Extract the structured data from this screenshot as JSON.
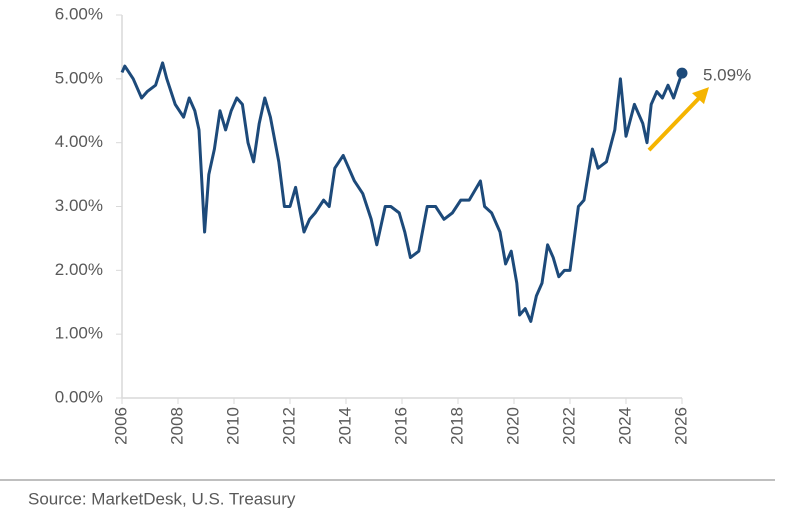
{
  "chart_data": {
    "type": "line",
    "x": [
      2006.0,
      2006.1,
      2006.4,
      2006.7,
      2006.9,
      2007.2,
      2007.45,
      2007.6,
      2007.9,
      2008.2,
      2008.4,
      2008.6,
      2008.75,
      2008.9,
      2008.95,
      2009.1,
      2009.3,
      2009.5,
      2009.7,
      2009.9,
      2010.1,
      2010.3,
      2010.5,
      2010.7,
      2010.9,
      2011.1,
      2011.3,
      2011.6,
      2011.8,
      2012.0,
      2012.2,
      2012.5,
      2012.7,
      2012.9,
      2013.2,
      2013.4,
      2013.6,
      2013.9,
      2014.1,
      2014.3,
      2014.6,
      2014.9,
      2015.1,
      2015.4,
      2015.6,
      2015.9,
      2016.1,
      2016.3,
      2016.6,
      2016.9,
      2017.2,
      2017.5,
      2017.8,
      2018.1,
      2018.4,
      2018.8,
      2018.95,
      2019.2,
      2019.5,
      2019.7,
      2019.9,
      2020.1,
      2020.2,
      2020.4,
      2020.6,
      2020.8,
      2021.0,
      2021.2,
      2021.4,
      2021.6,
      2021.8,
      2022.0,
      2022.3,
      2022.5,
      2022.8,
      2023.0,
      2023.3,
      2023.6,
      2023.8,
      2024.0,
      2024.3,
      2024.6,
      2024.75,
      2024.9,
      2025.1,
      2025.3,
      2025.5,
      2025.7,
      2025.85,
      2026.0
    ],
    "series": [
      {
        "color": "#1d4a7a",
        "values": [
          5.1,
          5.2,
          5.0,
          4.7,
          4.8,
          4.9,
          5.25,
          5.0,
          4.6,
          4.4,
          4.7,
          4.5,
          4.2,
          3.0,
          2.6,
          3.5,
          3.9,
          4.5,
          4.2,
          4.5,
          4.7,
          4.6,
          4.0,
          3.7,
          4.3,
          4.7,
          4.4,
          3.7,
          3.0,
          3.0,
          3.3,
          2.6,
          2.8,
          2.9,
          3.1,
          3.0,
          3.6,
          3.8,
          3.6,
          3.4,
          3.2,
          2.8,
          2.4,
          3.0,
          3.0,
          2.9,
          2.6,
          2.2,
          2.3,
          3.0,
          3.0,
          2.8,
          2.9,
          3.1,
          3.1,
          3.4,
          3.0,
          2.9,
          2.6,
          2.1,
          2.3,
          1.8,
          1.3,
          1.4,
          1.2,
          1.6,
          1.8,
          2.4,
          2.2,
          1.9,
          2.0,
          2.0,
          3.0,
          3.1,
          3.9,
          3.6,
          3.7,
          4.2,
          5.0,
          4.1,
          4.6,
          4.3,
          4.0,
          4.6,
          4.8,
          4.7,
          4.9,
          4.7,
          4.9,
          5.09
        ]
      }
    ],
    "xlim": [
      2006,
      2026
    ],
    "xticks": [
      2006,
      2008,
      2010,
      2012,
      2014,
      2016,
      2018,
      2020,
      2022,
      2024,
      2026
    ],
    "ylim": [
      0,
      6
    ],
    "yticks": [
      {
        "value": 0,
        "label": "0.00%"
      },
      {
        "value": 1,
        "label": "1.00%"
      },
      {
        "value": 2,
        "label": "2.00%"
      },
      {
        "value": 3,
        "label": "3.00%"
      },
      {
        "value": 4,
        "label": "4.00%"
      },
      {
        "value": 5,
        "label": "5.00%"
      },
      {
        "value": 6,
        "label": "6.00%"
      }
    ],
    "annotation": {
      "label": "5.09%",
      "color": "#f5b400"
    },
    "source": "Source: MarketDesk, U.S. Treasury"
  }
}
